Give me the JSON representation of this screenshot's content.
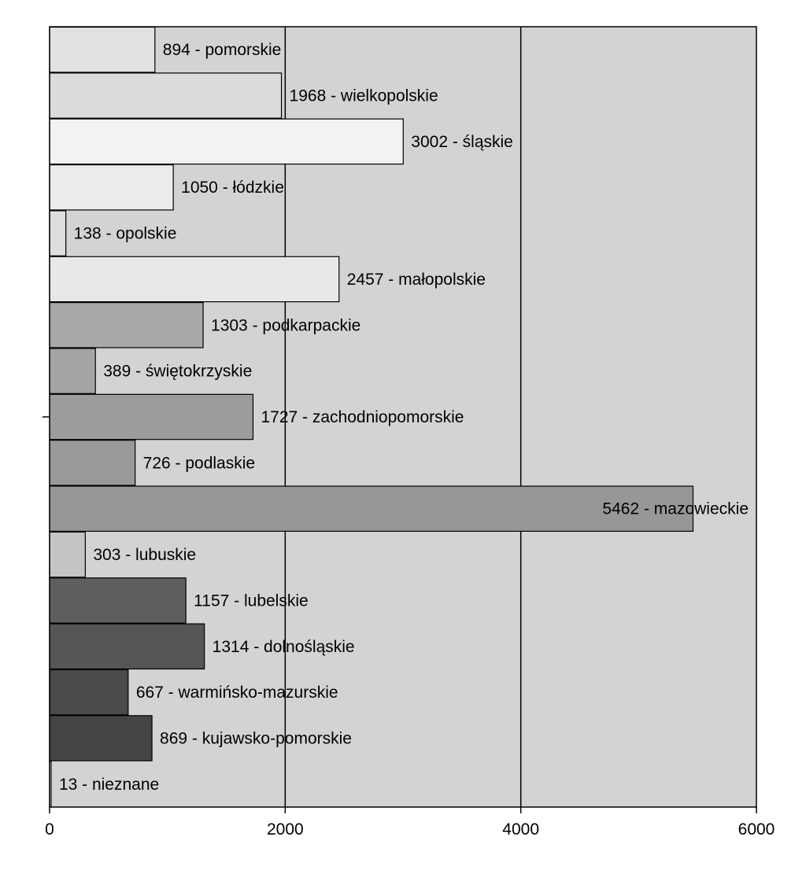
{
  "chart_data": {
    "type": "bar",
    "orientation": "horizontal",
    "title": "",
    "xlabel": "",
    "ylabel": "",
    "xlim": [
      0,
      6000
    ],
    "xticks": [
      0,
      2000,
      4000,
      6000
    ],
    "grid": "vertical lines at major ticks",
    "legend": "none",
    "plot_background": "#d3d3d3",
    "bars": [
      {
        "value": 894,
        "label": "894 - pomorskie",
        "fill": "#e2e2e2"
      },
      {
        "value": 1968,
        "label": "1968 - wielkopolskie",
        "fill": "#dcdcdc"
      },
      {
        "value": 3002,
        "label": "3002 - śląskie",
        "fill": "#f2f2f2"
      },
      {
        "value": 1050,
        "label": "1050 - łódzkie",
        "fill": "#ececec"
      },
      {
        "value": 138,
        "label": "138 - opolskie",
        "fill": "#dedede"
      },
      {
        "value": 2457,
        "label": "2457 - małopolskie",
        "fill": "#e8e8e8"
      },
      {
        "value": 1303,
        "label": "1303 - podkarpackie",
        "fill": "#a9a9a9"
      },
      {
        "value": 389,
        "label": "389 - świętokrzyskie",
        "fill": "#a4a4a4"
      },
      {
        "value": 1727,
        "label": "1727 - zachodniopomorskie",
        "fill": "#9c9c9c"
      },
      {
        "value": 726,
        "label": "726 - podlaskie",
        "fill": "#9a9a9a"
      },
      {
        "value": 5462,
        "label": "5462 - mazowieckie",
        "fill": "#979797"
      },
      {
        "value": 303,
        "label": "303 - lubuskie",
        "fill": "#c4c4c4"
      },
      {
        "value": 1157,
        "label": "1157 - lubelskie",
        "fill": "#5e5e5e"
      },
      {
        "value": 1314,
        "label": "1314 - dolnośląskie",
        "fill": "#565656"
      },
      {
        "value": 667,
        "label": "667 - warmińsko-mazurskie",
        "fill": "#4a4a4a"
      },
      {
        "value": 869,
        "label": "869 - kujawsko-pomorskie",
        "fill": "#444444"
      },
      {
        "value": 13,
        "label": "13 -     nieznane",
        "fill": "#ffffff"
      }
    ]
  }
}
